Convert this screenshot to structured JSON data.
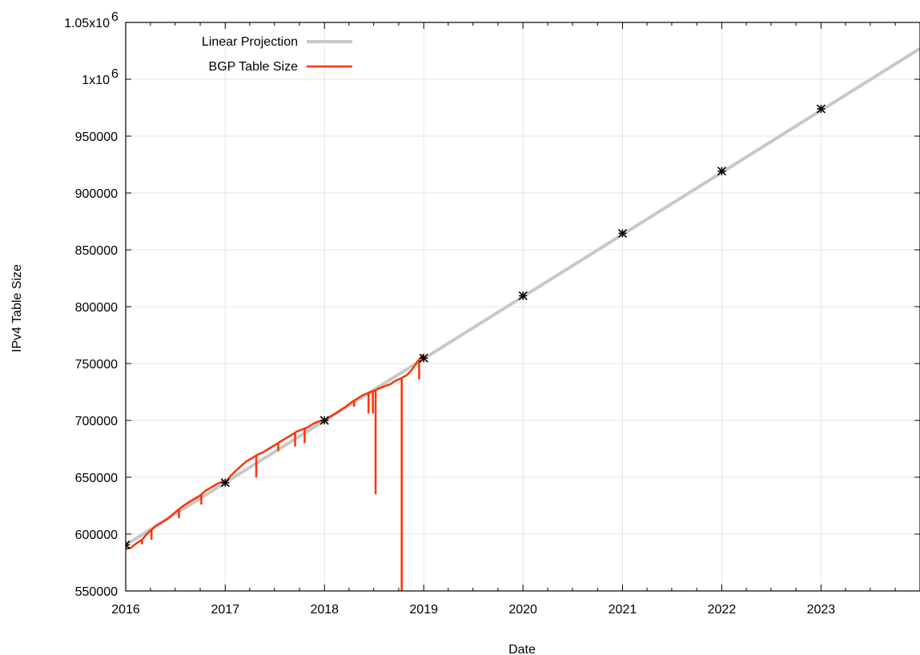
{
  "chart_data": {
    "type": "line",
    "title": "",
    "xlabel": "Date",
    "ylabel": "IPv4 Table Size",
    "x_ticks": [
      "2016",
      "2017",
      "2018",
      "2019",
      "2020",
      "2021",
      "2022",
      "2023"
    ],
    "y_ticks": [
      {
        "value": 550000,
        "label": "550000"
      },
      {
        "value": 600000,
        "label": "600000"
      },
      {
        "value": 650000,
        "label": "650000"
      },
      {
        "value": 700000,
        "label": "700000"
      },
      {
        "value": 750000,
        "label": "750000"
      },
      {
        "value": 800000,
        "label": "800000"
      },
      {
        "value": 850000,
        "label": "850000"
      },
      {
        "value": 900000,
        "label": "900000"
      },
      {
        "value": 950000,
        "label": "950000"
      },
      {
        "value": 1000000,
        "label": "1x10",
        "exp": "6"
      },
      {
        "value": 1050000,
        "label": "1.05x10",
        "exp": "6"
      }
    ],
    "xlim": [
      "2016-01-01",
      "2023-12-31"
    ],
    "ylim": [
      550000,
      1050000
    ],
    "grid": true,
    "legend": "top-left",
    "series": [
      {
        "name": "Linear Projection",
        "color": "#c8c8c8",
        "x": [
          "2016-01-01",
          "2023-12-31"
        ],
        "y": [
          590500,
          1027000
        ]
      },
      {
        "name": "BGP Table Size",
        "color": "#ff3300",
        "x": [
          "2016-01-01",
          "2016-01-20",
          "2016-02-10",
          "2016-03-01",
          "2016-03-15",
          "2016-04-01",
          "2016-04-20",
          "2016-05-10",
          "2016-06-01",
          "2016-06-20",
          "2016-07-10",
          "2016-08-01",
          "2016-08-20",
          "2016-09-10",
          "2016-10-01",
          "2016-10-20",
          "2016-11-10",
          "2016-12-01",
          "2016-12-20",
          "2017-01-01",
          "2017-01-20",
          "2017-02-10",
          "2017-03-01",
          "2017-03-20",
          "2017-04-10",
          "2017-05-01",
          "2017-05-20",
          "2017-06-10",
          "2017-07-01",
          "2017-07-20",
          "2017-08-10",
          "2017-09-01",
          "2017-09-20",
          "2017-10-10",
          "2017-11-01",
          "2017-11-20",
          "2017-12-10",
          "2018-01-01",
          "2018-01-20",
          "2018-02-10",
          "2018-03-01",
          "2018-03-20",
          "2018-04-10",
          "2018-05-01",
          "2018-05-20",
          "2018-06-10",
          "2018-07-01",
          "2018-07-20",
          "2018-08-10",
          "2018-09-01",
          "2018-09-20",
          "2018-10-10",
          "2018-11-01",
          "2018-11-20",
          "2018-12-10",
          "2018-12-31"
        ],
        "y": [
          587000,
          588000,
          592000,
          595000,
          599000,
          603000,
          607000,
          610000,
          613000,
          617000,
          621000,
          625000,
          628000,
          631000,
          634000,
          638000,
          641000,
          644000,
          646000,
          645000,
          651000,
          656000,
          660000,
          664000,
          667000,
          670000,
          672000,
          675000,
          678000,
          681000,
          684000,
          687000,
          690000,
          692000,
          694000,
          697000,
          699000,
          700000,
          703000,
          706000,
          709000,
          712000,
          716000,
          719000,
          722000,
          724000,
          726000,
          728000,
          730000,
          732000,
          735000,
          737000,
          740000,
          745000,
          752000,
          758000
        ]
      }
    ],
    "dips": [
      {
        "x": "2016-03-01",
        "y": 591000
      },
      {
        "x": "2016-04-05",
        "y": 595000
      },
      {
        "x": "2016-07-15",
        "y": 614000
      },
      {
        "x": "2016-10-05",
        "y": 626000
      },
      {
        "x": "2017-04-25",
        "y": 650000
      },
      {
        "x": "2017-07-15",
        "y": 673000
      },
      {
        "x": "2017-09-15",
        "y": 677000
      },
      {
        "x": "2017-10-20",
        "y": 680000
      },
      {
        "x": "2018-04-20",
        "y": 712000
      },
      {
        "x": "2018-06-12",
        "y": 706000
      },
      {
        "x": "2018-06-28",
        "y": 706000
      },
      {
        "x": "2018-07-08",
        "y": 635000
      },
      {
        "x": "2018-10-12",
        "y": 550000
      },
      {
        "x": "2018-12-15",
        "y": 736000
      }
    ],
    "markers": [
      {
        "x": "2016-01-01",
        "y": 590500
      },
      {
        "x": "2017-01-01",
        "y": 645200
      },
      {
        "x": "2018-01-01",
        "y": 700000
      },
      {
        "x": "2019-01-01",
        "y": 754800
      },
      {
        "x": "2020-01-01",
        "y": 809600
      },
      {
        "x": "2021-01-01",
        "y": 864500
      },
      {
        "x": "2022-01-01",
        "y": 919200
      },
      {
        "x": "2023-01-01",
        "y": 974000
      }
    ]
  }
}
